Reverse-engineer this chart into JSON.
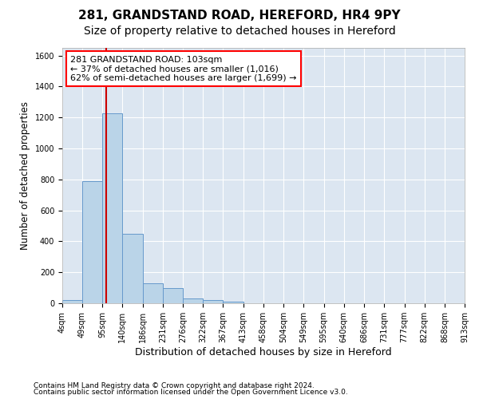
{
  "title": "281, GRANDSTAND ROAD, HEREFORD, HR4 9PY",
  "subtitle": "Size of property relative to detached houses in Hereford",
  "xlabel": "Distribution of detached houses by size in Hereford",
  "ylabel": "Number of detached properties",
  "footer_line1": "Contains HM Land Registry data © Crown copyright and database right 2024.",
  "footer_line2": "Contains public sector information licensed under the Open Government Licence v3.0.",
  "annotation_line1": "281 GRANDSTAND ROAD: 103sqm",
  "annotation_line2": "← 37% of detached houses are smaller (1,016)",
  "annotation_line3": "62% of semi-detached houses are larger (1,699) →",
  "bar_color": "#bad4e8",
  "bar_edge_color": "#6699cc",
  "vline_color": "#cc0000",
  "vline_x": 103,
  "bin_edges": [
    4,
    49,
    95,
    140,
    186,
    231,
    276,
    322,
    367,
    413,
    458,
    504,
    549,
    595,
    640,
    686,
    731,
    777,
    822,
    868,
    913
  ],
  "bar_heights": [
    20,
    790,
    1225,
    450,
    130,
    100,
    30,
    20,
    10,
    0,
    0,
    0,
    0,
    0,
    0,
    0,
    0,
    0,
    0,
    0
  ],
  "ylim": [
    0,
    1650
  ],
  "yticks": [
    0,
    200,
    400,
    600,
    800,
    1000,
    1200,
    1400,
    1600
  ],
  "plot_bg_color": "#dce6f1",
  "fig_bg_color": "#ffffff",
  "title_fontsize": 11,
  "subtitle_fontsize": 10,
  "tick_label_fontsize": 7,
  "ylabel_fontsize": 8.5,
  "xlabel_fontsize": 9,
  "footer_fontsize": 6.5
}
